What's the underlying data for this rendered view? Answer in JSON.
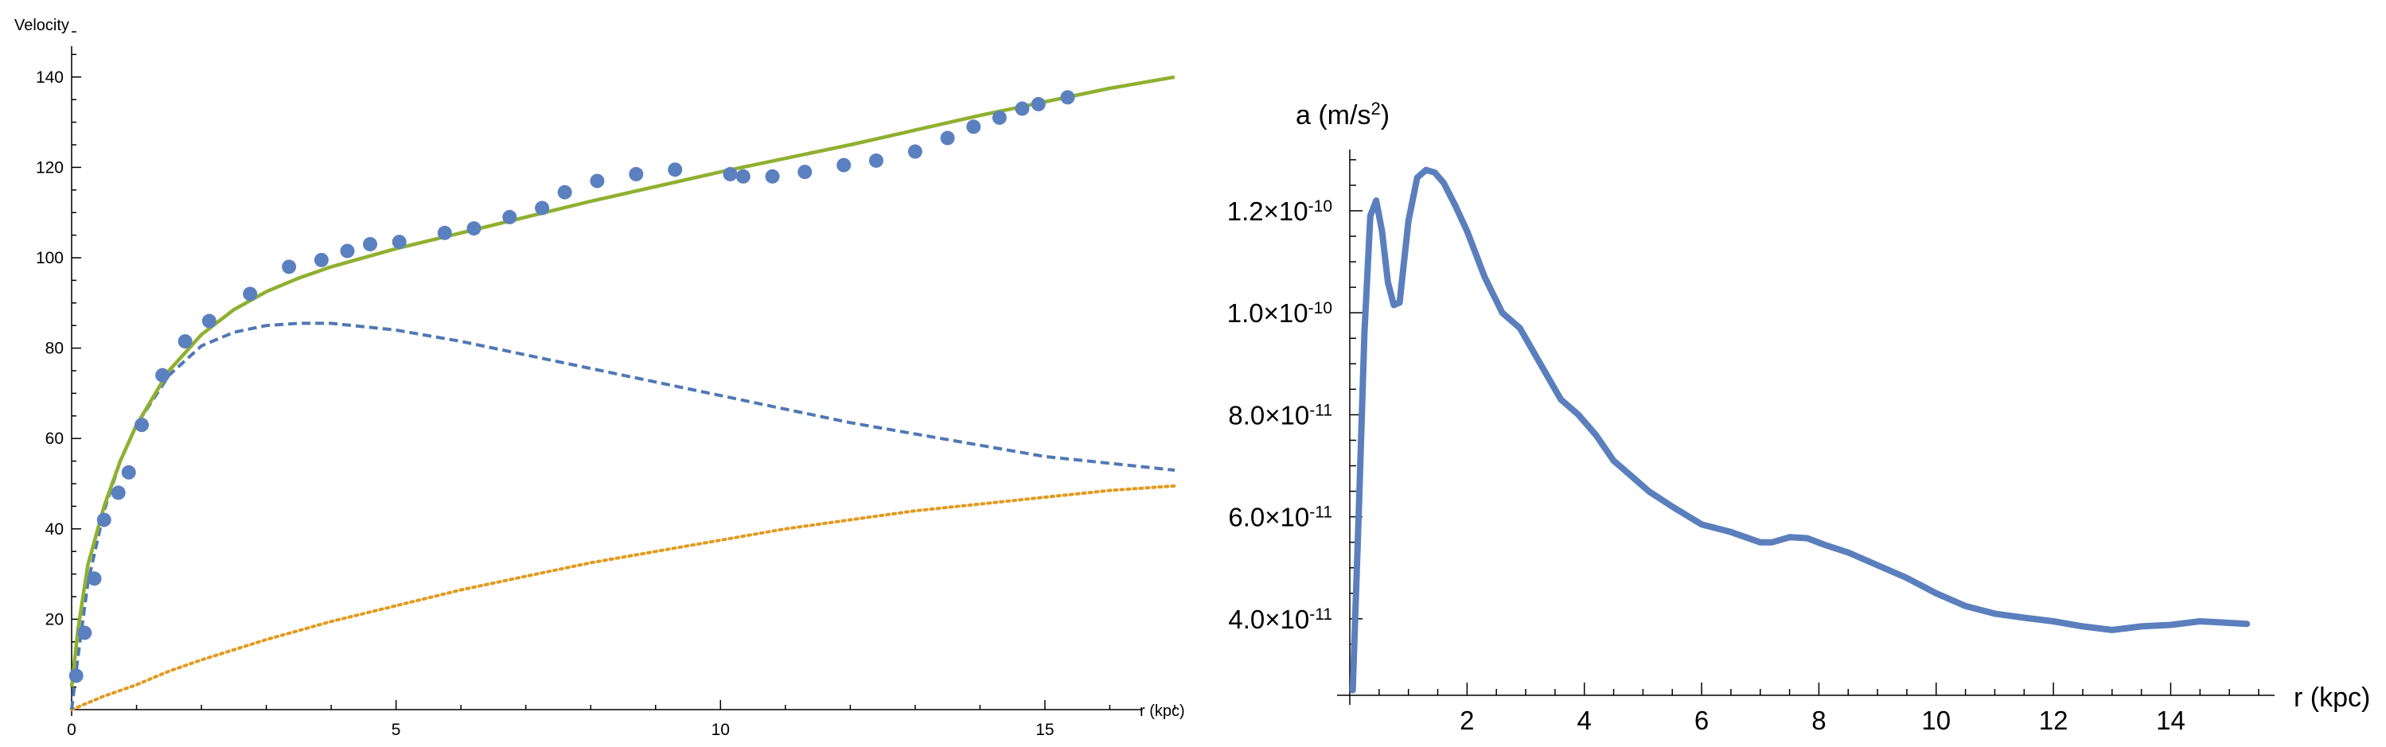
{
  "chart_data": [
    {
      "type": "line",
      "title": "",
      "xlabel": "r (kpc)",
      "ylabel": "Velocity",
      "xlim": [
        0,
        17
      ],
      "ylim": [
        0,
        150
      ],
      "xticks": [
        0,
        5,
        10,
        15
      ],
      "yticks": [
        20,
        40,
        60,
        80,
        100,
        120,
        140
      ],
      "grid": false,
      "colors": {
        "observed": "#5b80bf",
        "total": "#8fb030",
        "dashed": "#4f78b5",
        "dotted": "#e39a1e"
      },
      "series": [
        {
          "style": "points",
          "x": [
            0.07,
            0.2,
            0.35,
            0.5,
            0.72,
            0.88,
            1.08,
            1.4,
            1.75,
            2.12,
            2.75,
            3.35,
            3.85,
            4.25,
            4.6,
            5.05,
            5.75,
            6.2,
            6.75,
            7.25,
            7.6,
            8.1,
            8.7,
            9.3,
            10.15,
            10.35,
            10.8,
            11.3,
            11.9,
            12.4,
            13.0,
            13.5,
            13.9,
            14.3,
            14.65,
            14.9,
            15.35
          ],
          "y": [
            7.5,
            17,
            29,
            42,
            48,
            52.5,
            63,
            74,
            81.5,
            86,
            92,
            98,
            99.5,
            101.5,
            103,
            103.5,
            105.5,
            106.5,
            109,
            111,
            114.5,
            117,
            118.5,
            119.5,
            118.5,
            118,
            118,
            119,
            120.5,
            121.5,
            123.5,
            126.5,
            129,
            131,
            133,
            134,
            135.5
          ]
        },
        {
          "style": "solid",
          "x": [
            0,
            0.1,
            0.25,
            0.5,
            0.75,
            1.0,
            1.5,
            2.0,
            2.5,
            3.0,
            3.5,
            4.0,
            5.0,
            6.0,
            7.0,
            8.0,
            10.0,
            12.0,
            14.0,
            15.0,
            16.0,
            17.0
          ],
          "y": [
            5,
            18,
            32,
            45,
            55,
            63,
            75,
            83,
            88.5,
            92.5,
            95.5,
            98,
            102,
            105.5,
            109,
            112.5,
            119,
            125,
            131.5,
            134.5,
            137.5,
            140
          ]
        },
        {
          "style": "dashed",
          "x": [
            0,
            0.1,
            0.25,
            0.5,
            0.75,
            1.0,
            1.5,
            2.0,
            2.5,
            3.0,
            3.5,
            4.0,
            5.0,
            6.0,
            7.0,
            8.0,
            9.0,
            10.0,
            11.0,
            12.0,
            13.0,
            14.0,
            15.0,
            16.0,
            17.0
          ],
          "y": [
            0,
            12,
            28,
            44,
            55,
            63,
            74,
            80.5,
            83.5,
            85,
            85.5,
            85.5,
            84,
            81.5,
            78.5,
            75.5,
            72.5,
            69.5,
            66.5,
            63.5,
            61,
            58.5,
            56,
            54.5,
            53
          ]
        },
        {
          "style": "dotted",
          "x": [
            0,
            0.25,
            0.5,
            1.0,
            1.5,
            2.0,
            3.0,
            4.0,
            5.0,
            6.0,
            7.0,
            8.0,
            9.0,
            10.0,
            11.0,
            12.0,
            13.0,
            14.0,
            15.0,
            16.0,
            17.0
          ],
          "y": [
            0,
            1.5,
            3,
            5.5,
            8.5,
            11,
            15.5,
            19.5,
            23,
            26.5,
            29.5,
            32.5,
            35,
            37.5,
            40,
            42,
            44,
            45.5,
            47,
            48.5,
            49.5
          ]
        }
      ]
    },
    {
      "type": "line",
      "title": "",
      "xlabel": "r (kpc)",
      "ylabel_base": "a (m/s",
      "ylabel_sup": "2",
      "ylabel_end": ")",
      "xlim": [
        0,
        15.5
      ],
      "ylim": [
        2.5e-11,
        1.32e-10
      ],
      "xticks": [
        2,
        4,
        6,
        8,
        10,
        12,
        14
      ],
      "yticks": [
        {
          "value": 1.2e-10,
          "mantissa": "1.2",
          "exponent": "-10"
        },
        {
          "value": 1e-10,
          "mantissa": "1.0",
          "exponent": "-10"
        },
        {
          "value": 8e-11,
          "mantissa": "8.0",
          "exponent": "-11"
        },
        {
          "value": 6e-11,
          "mantissa": "6.0",
          "exponent": "-11"
        },
        {
          "value": 4e-11,
          "mantissa": "4.0",
          "exponent": "-11"
        }
      ],
      "grid": false,
      "colors": {
        "line": "#5b7fbd"
      },
      "series": [
        {
          "x": [
            0.05,
            0.15,
            0.25,
            0.35,
            0.45,
            0.55,
            0.65,
            0.75,
            0.85,
            1.0,
            1.15,
            1.3,
            1.45,
            1.6,
            1.8,
            2.0,
            2.3,
            2.6,
            2.9,
            3.1,
            3.3,
            3.6,
            3.9,
            4.2,
            4.5,
            4.8,
            5.1,
            5.5,
            6.0,
            6.5,
            7.0,
            7.2,
            7.5,
            7.8,
            8.1,
            8.5,
            9.0,
            9.5,
            10.0,
            10.5,
            11.0,
            11.5,
            12.0,
            12.5,
            13.0,
            13.5,
            14.0,
            14.5,
            15.0,
            15.3
          ],
          "y": [
            2.6e-11,
            6e-11,
            9.6e-11,
            1.19e-10,
            1.22e-10,
            1.16e-10,
            1.06e-10,
            1.015e-10,
            1.02e-10,
            1.18e-10,
            1.265e-10,
            1.28e-10,
            1.275e-10,
            1.255e-10,
            1.21e-10,
            1.16e-10,
            1.07e-10,
            1e-10,
            9.7e-11,
            9.3e-11,
            8.9e-11,
            8.3e-11,
            8e-11,
            7.6e-11,
            7.1e-11,
            6.8e-11,
            6.5e-11,
            6.2e-11,
            5.85e-11,
            5.7e-11,
            5.5e-11,
            5.5e-11,
            5.6e-11,
            5.58e-11,
            5.45e-11,
            5.3e-11,
            5.05e-11,
            4.8e-11,
            4.5e-11,
            4.25e-11,
            4.1e-11,
            4.02e-11,
            3.95e-11,
            3.85e-11,
            3.78e-11,
            3.85e-11,
            3.88e-11,
            3.95e-11,
            3.92e-11,
            3.9e-11
          ]
        }
      ]
    }
  ]
}
